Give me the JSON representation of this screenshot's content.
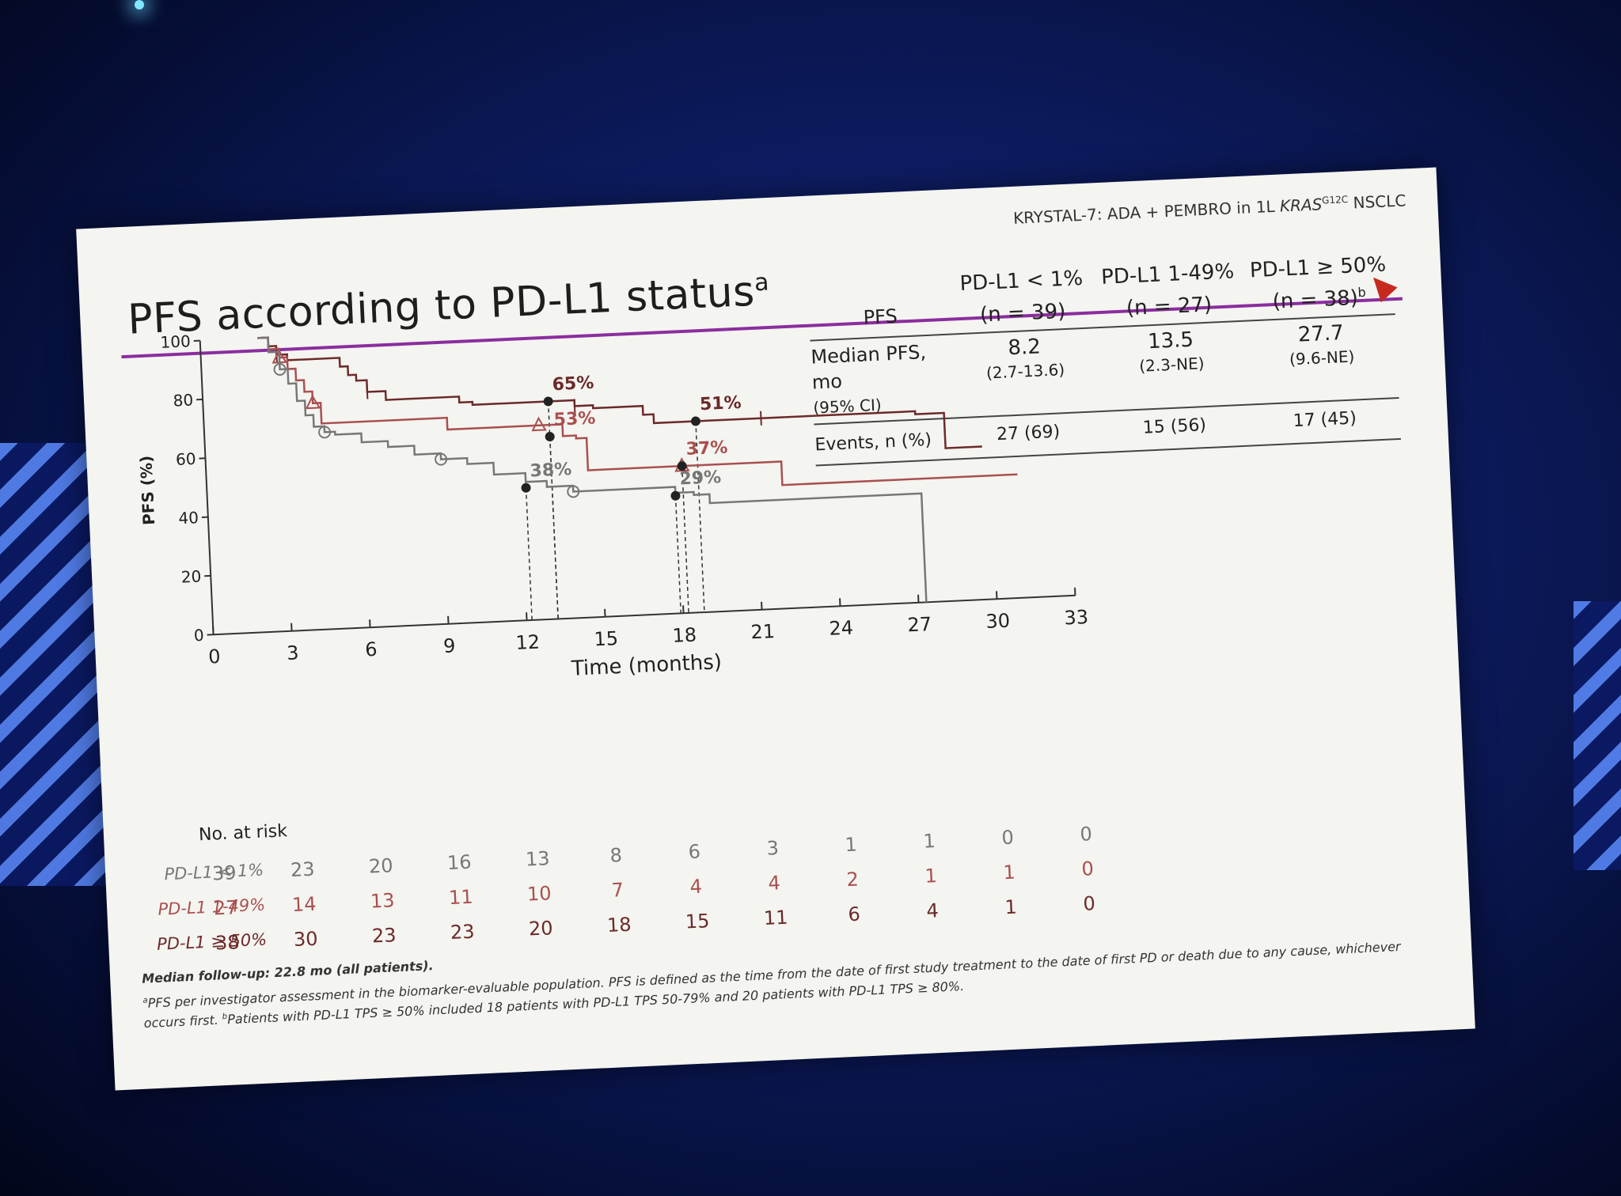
{
  "slide": {
    "study_label_pre": "KRYSTAL-7: ADA + PEMBRO in 1L ",
    "study_label_italic": "KRAS",
    "study_label_sup": "G12C",
    "study_label_post": " NSCLC",
    "title": "PFS according to PD-L1 status",
    "title_sup": "a",
    "accent_color": "#8a2e9e"
  },
  "table": {
    "col0_header": "PFS",
    "groups": [
      {
        "name": "PD-L1 < 1%",
        "n": "(n = 39)",
        "n_sup": "",
        "median": "8.2",
        "ci": "(2.7-13.6)",
        "events": "27 (69)"
      },
      {
        "name": "PD-L1 1-49%",
        "n": "(n = 27)",
        "n_sup": "",
        "median": "13.5",
        "ci": "(2.3-NE)",
        "events": "15 (56)"
      },
      {
        "name": "PD-L1 ≥ 50%",
        "n": "(n = 38)",
        "n_sup": "b",
        "median": "27.7",
        "ci": "(9.6-NE)",
        "events": "17 (45)"
      }
    ],
    "median_label": "Median PFS, mo",
    "ci_label": "(95% CI)",
    "events_label": "Events, n (%)"
  },
  "chart_data": {
    "type": "line",
    "step": true,
    "xlabel": "Time (months)",
    "ylabel": "PFS (%)",
    "xlim": [
      0,
      33
    ],
    "ylim": [
      0,
      100
    ],
    "xticks": [
      0,
      3,
      6,
      9,
      12,
      15,
      18,
      21,
      24,
      27,
      30,
      33
    ],
    "yticks": [
      0,
      20,
      40,
      60,
      80,
      100
    ],
    "grid": false,
    "series": [
      {
        "name": "PD-L1 ≥ 50%",
        "color": "#6b2a2a",
        "x": [
          2.2,
          2.6,
          2.9,
          3.3,
          5.3,
          5.6,
          5.9,
          6.3,
          7.0,
          9.8,
          10.3,
          12.2,
          14.2,
          14.9,
          16.8,
          17.2,
          18.8,
          21.3,
          27.2,
          28.3,
          29.7
        ],
        "y": [
          100,
          97,
          94,
          92,
          89,
          86,
          84,
          80,
          77,
          75,
          74,
          74,
          72,
          71,
          68,
          65,
          65,
          65,
          64,
          52,
          52
        ],
        "annotations": [
          {
            "x": 13.2,
            "y": 74,
            "label": "65%"
          },
          {
            "x": 18.8,
            "y": 65,
            "label": "51%"
          }
        ],
        "marker": "tick"
      },
      {
        "name": "PD-L1 1-49%",
        "color": "#a85050",
        "x": [
          2.2,
          2.6,
          3.0,
          3.3,
          3.6,
          3.9,
          4.2,
          4.5,
          9.0,
          9.3,
          12.8,
          13.7,
          14.2,
          14.6,
          18.2,
          21.0,
          22.0,
          31.0
        ],
        "y": [
          100,
          96,
          93,
          89,
          85,
          81,
          77,
          70,
          70,
          66,
          66,
          62,
          61,
          50,
          50,
          50,
          42,
          42
        ],
        "annotations": [
          {
            "x": 13.2,
            "y": 62,
            "label": "53%"
          },
          {
            "x": 18.2,
            "y": 50,
            "label": "37%"
          }
        ],
        "marker": "triangle"
      },
      {
        "name": "PD-L1 < 1%",
        "color": "#777777",
        "x": [
          2.2,
          2.6,
          3.0,
          3.3,
          3.6,
          3.9,
          4.2,
          4.6,
          5.0,
          6.0,
          7.0,
          8.0,
          9.0,
          10.0,
          11.0,
          12.2,
          13.0,
          14.0,
          17.9,
          18.6,
          19.2,
          27.0,
          27.3
        ],
        "y": [
          100,
          95,
          89,
          84,
          78,
          73,
          69,
          67,
          66,
          63,
          61,
          58,
          56,
          54,
          50,
          47,
          45,
          43,
          41,
          40,
          37,
          37,
          0
        ],
        "annotations": [
          {
            "x": 12.2,
            "y": 45,
            "label": "38%"
          },
          {
            "x": 17.9,
            "y": 40,
            "label": "29%"
          }
        ],
        "marker": "circle"
      }
    ]
  },
  "risk": {
    "title": "No. at risk",
    "times": [
      0,
      3,
      6,
      9,
      12,
      15,
      18,
      21,
      24,
      27,
      30,
      33
    ],
    "rows": [
      {
        "label": "PD-L1 < 1%",
        "color": "#777777",
        "values": [
          "39",
          "23",
          "20",
          "16",
          "13",
          "8",
          "6",
          "3",
          "1",
          "1",
          "0",
          "0"
        ]
      },
      {
        "label": "PD-L1 1-49%",
        "color": "#a85050",
        "values": [
          "27",
          "14",
          "13",
          "11",
          "10",
          "7",
          "4",
          "4",
          "2",
          "1",
          "1",
          "0"
        ]
      },
      {
        "label": "PD-L1 ≥ 50%",
        "color": "#6b2a2a",
        "values": [
          "38",
          "30",
          "23",
          "23",
          "20",
          "18",
          "15",
          "11",
          "6",
          "4",
          "1",
          "0"
        ]
      }
    ]
  },
  "footnotes": {
    "followup": "Median follow-up: 22.8 mo (all patients).",
    "note_a_sup": "a",
    "note_a": "PFS per investigator assessment in the biomarker-evaluable population. PFS is defined as the time from the date of first study treatment to the date of first PD or death due to any cause, whichever occurs first. ",
    "note_b_sup": "b",
    "note_b": "Patients with PD-L1 TPS ≥ 50% included 18 patients with PD-L1 TPS 50-79% and 20 patients with PD-L1 TPS ≥ 80%."
  }
}
